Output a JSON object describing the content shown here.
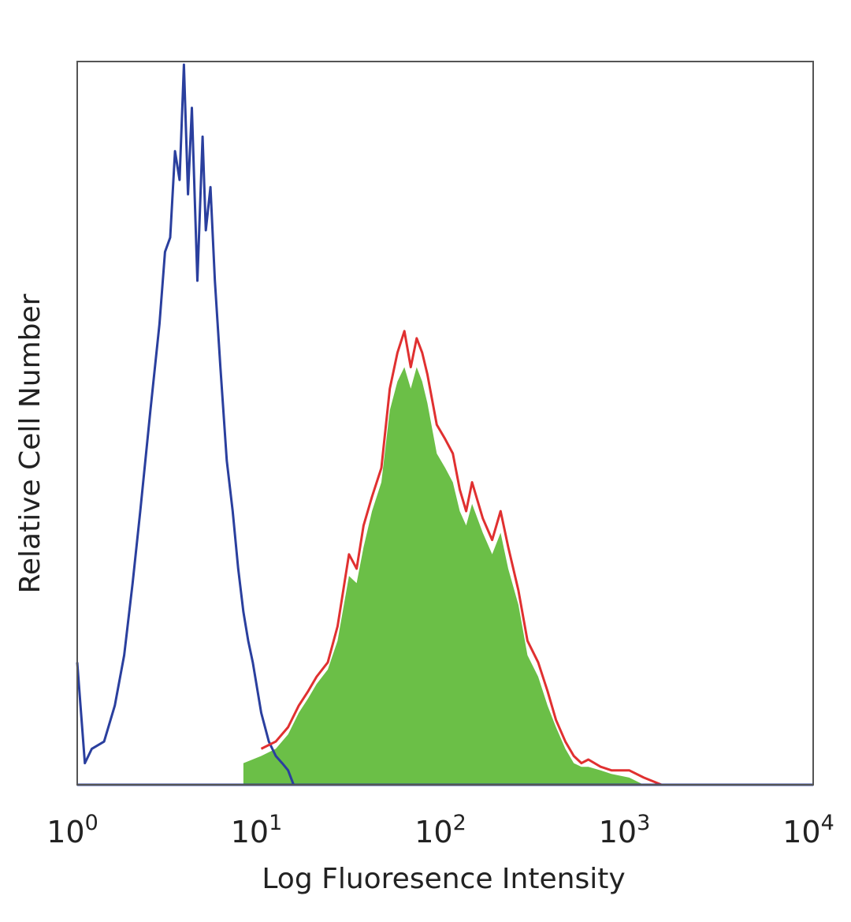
{
  "chart_data": {
    "type": "area",
    "title": "",
    "xlabel": "Log Fluoresence Intensity",
    "ylabel": "Relative Cell Number",
    "x_scale": "log",
    "xlim": [
      1,
      10000
    ],
    "ylim": [
      0,
      1
    ],
    "y_ticks_shown": false,
    "grid": false,
    "legend": "none",
    "x_ticks": [
      {
        "base": "10",
        "exp": "0",
        "value": 1
      },
      {
        "base": "10",
        "exp": "1",
        "value": 10
      },
      {
        "base": "10",
        "exp": "2",
        "value": 100
      },
      {
        "base": "10",
        "exp": "3",
        "value": 1000
      },
      {
        "base": "10",
        "exp": "4",
        "value": 10000
      }
    ],
    "series": [
      {
        "style": "line",
        "color": "#2a3f9e",
        "x": [
          1,
          1.1,
          1.2,
          1.4,
          1.6,
          1.8,
          2.0,
          2.2,
          2.5,
          2.8,
          3.0,
          3.2,
          3.4,
          3.6,
          3.8,
          4.0,
          4.2,
          4.5,
          4.8,
          5.0,
          5.3,
          5.6,
          6.0,
          6.5,
          7.0,
          7.5,
          8.0,
          8.5,
          9.0,
          10,
          11,
          12,
          13,
          14,
          15
        ],
        "y": [
          0.17,
          0.03,
          0.05,
          0.06,
          0.11,
          0.18,
          0.28,
          0.38,
          0.52,
          0.64,
          0.74,
          0.76,
          0.88,
          0.84,
          1.0,
          0.82,
          0.94,
          0.7,
          0.9,
          0.77,
          0.83,
          0.7,
          0.58,
          0.45,
          0.38,
          0.3,
          0.24,
          0.2,
          0.17,
          0.1,
          0.06,
          0.04,
          0.03,
          0.02,
          0.0
        ]
      },
      {
        "style": "line",
        "color": "#e03030",
        "x": [
          10,
          12,
          14,
          16,
          18,
          20,
          23,
          26,
          30,
          33,
          36,
          40,
          45,
          50,
          55,
          60,
          65,
          70,
          75,
          80,
          90,
          100,
          110,
          120,
          130,
          140,
          160,
          180,
          200,
          220,
          250,
          280,
          320,
          360,
          400,
          450,
          500,
          550,
          600,
          700,
          800,
          1000,
          1200,
          1500
        ],
        "y": [
          0.05,
          0.06,
          0.08,
          0.11,
          0.13,
          0.15,
          0.17,
          0.22,
          0.32,
          0.3,
          0.36,
          0.4,
          0.44,
          0.55,
          0.6,
          0.63,
          0.58,
          0.62,
          0.6,
          0.57,
          0.5,
          0.48,
          0.46,
          0.41,
          0.38,
          0.42,
          0.37,
          0.34,
          0.38,
          0.33,
          0.27,
          0.2,
          0.17,
          0.13,
          0.09,
          0.06,
          0.04,
          0.03,
          0.035,
          0.025,
          0.02,
          0.02,
          0.01,
          0.0
        ]
      },
      {
        "style": "filled",
        "color": "#6bbf47",
        "x": [
          8,
          10,
          12,
          14,
          16,
          18,
          20,
          23,
          26,
          30,
          33,
          36,
          40,
          45,
          50,
          55,
          60,
          65,
          70,
          75,
          80,
          90,
          100,
          110,
          120,
          130,
          140,
          160,
          180,
          200,
          220,
          250,
          280,
          320,
          360,
          400,
          450,
          500,
          550,
          600,
          700,
          800,
          1000,
          1200
        ],
        "y": [
          0.03,
          0.04,
          0.05,
          0.07,
          0.1,
          0.12,
          0.14,
          0.16,
          0.2,
          0.29,
          0.28,
          0.33,
          0.38,
          0.42,
          0.52,
          0.56,
          0.58,
          0.55,
          0.58,
          0.56,
          0.53,
          0.46,
          0.44,
          0.42,
          0.38,
          0.36,
          0.39,
          0.35,
          0.32,
          0.35,
          0.3,
          0.25,
          0.18,
          0.15,
          0.11,
          0.08,
          0.05,
          0.03,
          0.025,
          0.025,
          0.02,
          0.015,
          0.01,
          0.0
        ]
      }
    ]
  }
}
